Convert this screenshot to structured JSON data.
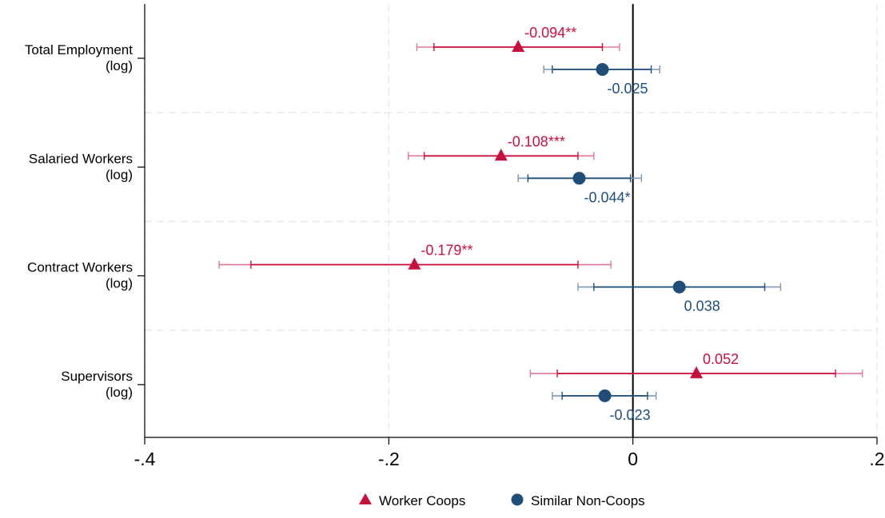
{
  "chart_data": {
    "type": "coefficient-plot",
    "orientation": "horizontal",
    "xlim": [
      -0.4,
      0.2
    ],
    "x_ticks": [
      {
        "value": -0.4,
        "label": "-.4"
      },
      {
        "value": -0.2,
        "label": "-.2"
      },
      {
        "value": 0,
        "label": "0"
      },
      {
        "value": 0.2,
        "label": ".2"
      }
    ],
    "reference_line": 0,
    "grid": true,
    "legend_position": "bottom",
    "categories": [
      {
        "line1": "Total Employment",
        "line2": "(log)"
      },
      {
        "line1": "Salaried Workers",
        "line2": "(log)"
      },
      {
        "line1": "Contract Workers",
        "line2": "(log)"
      },
      {
        "line1": "Supervisors",
        "line2": "(log)"
      }
    ],
    "series": [
      {
        "name": "Worker Coops",
        "marker": "triangle",
        "color": "#c8103e",
        "ci_color": "#e07a93",
        "points": [
          {
            "estimate": -0.094,
            "ci90": [
              -0.163,
              -0.025
            ],
            "ci95": [
              -0.177,
              -0.011
            ],
            "label": "-0.094**"
          },
          {
            "estimate": -0.108,
            "ci90": [
              -0.171,
              -0.045
            ],
            "ci95": [
              -0.184,
              -0.032
            ],
            "label": "-0.108***"
          },
          {
            "estimate": -0.179,
            "ci90": [
              -0.313,
              -0.045
            ],
            "ci95": [
              -0.339,
              -0.018
            ],
            "label": "-0.179**"
          },
          {
            "estimate": 0.052,
            "ci90": [
              -0.062,
              0.166
            ],
            "ci95": [
              -0.084,
              0.188
            ],
            "label": "0.052"
          }
        ]
      },
      {
        "name": "Similar Non-Coops",
        "marker": "circle",
        "color": "#1f4e79",
        "ci_color": "#7d99b3",
        "points": [
          {
            "estimate": -0.025,
            "ci90": [
              -0.066,
              0.015
            ],
            "ci95": [
              -0.073,
              0.022
            ],
            "label": "-0.025"
          },
          {
            "estimate": -0.044,
            "ci90": [
              -0.086,
              -0.002
            ],
            "ci95": [
              -0.094,
              0.007
            ],
            "label": "-0.044*"
          },
          {
            "estimate": 0.038,
            "ci90": [
              -0.032,
              0.108
            ],
            "ci95": [
              -0.045,
              0.121
            ],
            "label": "0.038"
          },
          {
            "estimate": -0.023,
            "ci90": [
              -0.058,
              0.012
            ],
            "ci95": [
              -0.066,
              0.019
            ],
            "label": "-0.023"
          }
        ]
      }
    ]
  }
}
